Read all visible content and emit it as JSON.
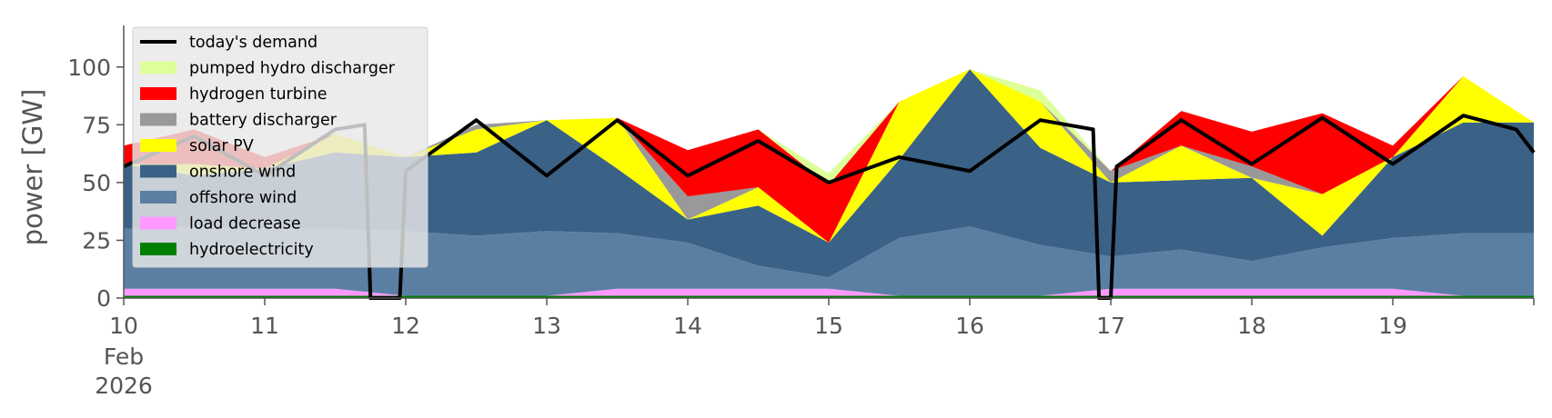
{
  "chart_data": {
    "type": "area",
    "title": "",
    "xlabel": "",
    "ylabel": "power [GW]",
    "ylim": [
      0,
      118
    ],
    "xlim": [
      "2026-02-10",
      "2026-02-20"
    ],
    "grid": false,
    "legend_position": "top-left",
    "x_ticks": [
      {
        "date": "2026-02-10",
        "label": "10",
        "sublabels": [
          "Feb",
          "2026"
        ]
      },
      {
        "date": "2026-02-11",
        "label": "11"
      },
      {
        "date": "2026-02-12",
        "label": "12"
      },
      {
        "date": "2026-02-13",
        "label": "13"
      },
      {
        "date": "2026-02-14",
        "label": "14"
      },
      {
        "date": "2026-02-15",
        "label": "15"
      },
      {
        "date": "2026-02-16",
        "label": "16"
      },
      {
        "date": "2026-02-17",
        "label": "17"
      },
      {
        "date": "2026-02-18",
        "label": "18"
      },
      {
        "date": "2026-02-19",
        "label": "19"
      }
    ],
    "y_ticks": [
      0,
      25,
      50,
      75,
      100
    ],
    "x": [
      "02-10 00:00",
      "02-10 12:00",
      "02-11 00:00",
      "02-11 12:00",
      "02-12 00:00",
      "02-12 12:00",
      "02-13 00:00",
      "02-13 12:00",
      "02-14 00:00",
      "02-14 12:00",
      "02-15 00:00",
      "02-15 12:00",
      "02-16 00:00",
      "02-16 12:00",
      "02-17 00:00",
      "02-17 12:00",
      "02-18 00:00",
      "02-18 12:00",
      "02-19 00:00",
      "02-19 12:00",
      "02-20 00:00"
    ],
    "series": [
      {
        "name": "hydroelectricity",
        "color": "#008000",
        "values": [
          1,
          1,
          1,
          1,
          1,
          1,
          1,
          1,
          1,
          1,
          1,
          1,
          1,
          1,
          1,
          1,
          1,
          1,
          1,
          1,
          1
        ]
      },
      {
        "name": "load decrease",
        "color": "#ff99ff",
        "values": [
          3,
          3,
          3,
          3,
          0,
          0,
          0,
          3,
          3,
          3,
          3,
          0,
          0,
          0,
          3,
          3,
          3,
          3,
          3,
          0,
          0
        ]
      },
      {
        "name": "offshore wind",
        "color": "#5b7fa3",
        "values": [
          26,
          27,
          26,
          26,
          28,
          26,
          28,
          24,
          20,
          10,
          5,
          25,
          30,
          22,
          14,
          17,
          12,
          18,
          22,
          27,
          27
        ]
      },
      {
        "name": "onshore wind",
        "color": "#3a6186",
        "values": [
          28,
          22,
          26,
          33,
          32,
          36,
          48,
          28,
          10,
          26,
          15,
          34,
          68,
          42,
          32,
          30,
          36,
          5,
          35,
          48,
          48
        ]
      },
      {
        "name": "solar PV",
        "color": "#ffff00",
        "values": [
          0,
          5,
          0,
          8,
          0,
          10,
          0,
          22,
          0,
          8,
          0,
          25,
          0,
          20,
          0,
          15,
          0,
          18,
          0,
          20,
          0
        ]
      },
      {
        "name": "battery discharger",
        "color": "#999999",
        "values": [
          0,
          0,
          0,
          0,
          0,
          2,
          0,
          0,
          10,
          0,
          0,
          0,
          0,
          0,
          5,
          0,
          5,
          0,
          0,
          0,
          0
        ]
      },
      {
        "name": "hydrogen turbine",
        "color": "#ff0000",
        "values": [
          8,
          15,
          5,
          0,
          0,
          0,
          0,
          0,
          20,
          25,
          25,
          0,
          0,
          0,
          0,
          15,
          15,
          35,
          5,
          0,
          0
        ]
      },
      {
        "name": "pumped hydro discharger",
        "color": "#ddff99",
        "values": [
          0,
          0,
          0,
          0,
          0,
          0,
          0,
          0,
          0,
          0,
          5,
          0,
          0,
          5,
          0,
          0,
          0,
          0,
          0,
          0,
          0
        ]
      }
    ],
    "demand": {
      "name": "today's demand",
      "color": "#000000",
      "points": [
        [
          "02-10 00:00",
          57
        ],
        [
          "02-10 12:00",
          70
        ],
        [
          "02-11 00:00",
          53
        ],
        [
          "02-11 12:00",
          73
        ],
        [
          "02-11 17:00",
          75
        ],
        [
          "02-11 18:00",
          0
        ],
        [
          "02-11 23:00",
          0
        ],
        [
          "02-12 00:00",
          55
        ],
        [
          "02-12 12:00",
          77
        ],
        [
          "02-13 00:00",
          53
        ],
        [
          "02-13 12:00",
          77
        ],
        [
          "02-14 00:00",
          53
        ],
        [
          "02-14 12:00",
          68
        ],
        [
          "02-15 00:00",
          50
        ],
        [
          "02-15 12:00",
          61
        ],
        [
          "02-16 00:00",
          55
        ],
        [
          "02-16 12:00",
          77
        ],
        [
          "02-16 21:00",
          73
        ],
        [
          "02-16 22:00",
          0
        ],
        [
          "02-17 00:00",
          0
        ],
        [
          "02-17 01:00",
          57
        ],
        [
          "02-17 12:00",
          77
        ],
        [
          "02-18 00:00",
          58
        ],
        [
          "02-18 12:00",
          78
        ],
        [
          "02-19 00:00",
          58
        ],
        [
          "02-19 12:00",
          79
        ],
        [
          "02-19 21:00",
          73
        ],
        [
          "02-20 00:00",
          63
        ]
      ]
    }
  }
}
